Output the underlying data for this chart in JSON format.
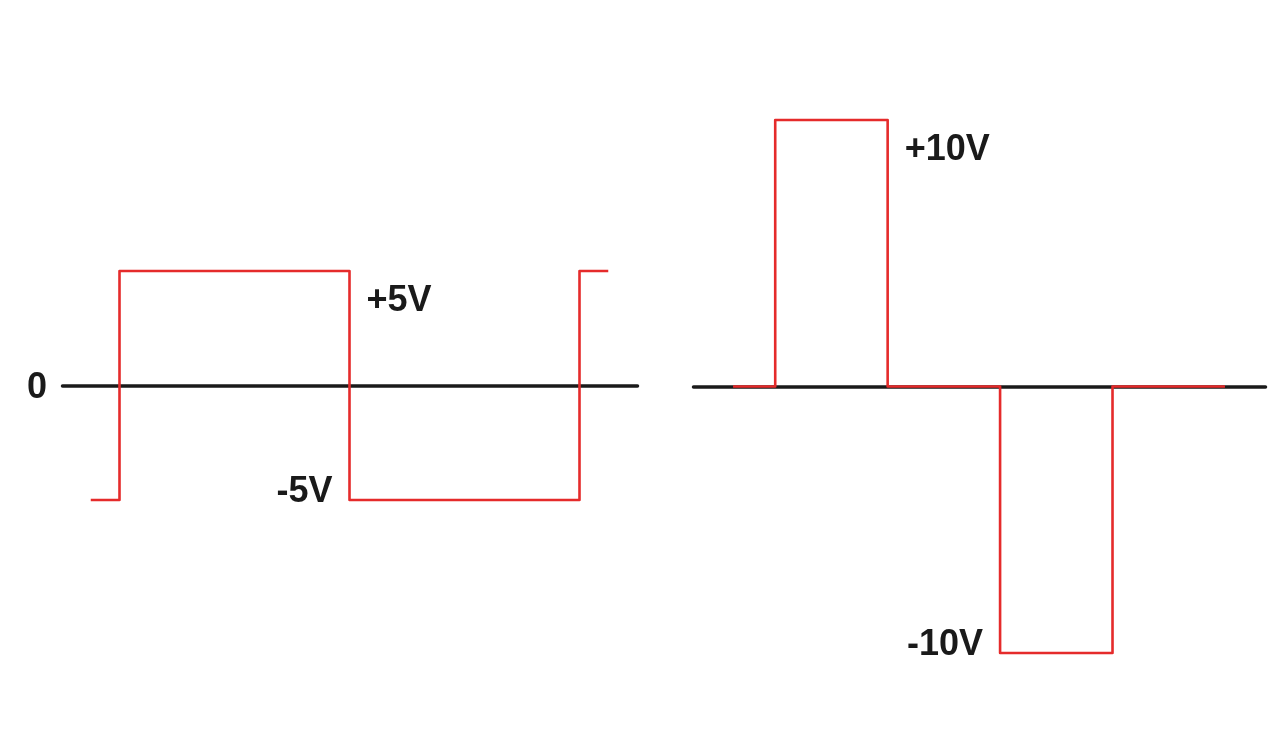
{
  "chart_data": [
    {
      "type": "step",
      "categories": [
        null,
        null,
        null,
        null,
        null,
        null,
        null,
        null,
        null,
        null,
        null,
        null,
        null,
        null,
        null,
        null,
        null,
        null,
        null
      ],
      "series": [
        {
          "color": "#e52b2b",
          "values": [
            -5,
            5,
            5,
            5,
            5,
            5,
            5,
            5,
            5,
            -5,
            -5,
            -5,
            -5,
            -5,
            -5,
            -5,
            -5,
            5,
            5
          ],
          "value_labels": [
            null,
            null,
            null,
            null,
            null,
            null,
            null,
            null,
            "+5V",
            "-5V",
            null,
            null,
            null,
            null,
            null,
            null,
            null,
            null,
            null
          ]
        }
      ],
      "annotations": [
        "0"
      ]
    },
    {
      "type": "step",
      "categories": [
        null,
        null,
        null,
        null,
        null,
        null,
        null,
        null,
        null,
        null,
        null,
        null,
        null,
        null,
        null,
        null,
        null,
        null,
        null,
        null,
        null,
        null,
        null,
        null,
        null,
        null,
        null,
        null,
        null,
        null,
        null,
        null,
        null,
        null,
        null,
        null
      ],
      "series": [
        {
          "color": "#e52b2b",
          "values": [
            0,
            0,
            0,
            10,
            10,
            10,
            10,
            10,
            10,
            10,
            10,
            0,
            0,
            0,
            0,
            0,
            0,
            0,
            0,
            -10,
            -10,
            -10,
            -10,
            -10,
            -10,
            -10,
            -10,
            0,
            0,
            0,
            0,
            0,
            0,
            0,
            0,
            0
          ],
          "value_labels": [
            null,
            null,
            null,
            null,
            null,
            null,
            null,
            null,
            null,
            null,
            "+10V",
            null,
            null,
            null,
            null,
            null,
            null,
            null,
            null,
            "-10V",
            null,
            null,
            null,
            null,
            null,
            null,
            null,
            null,
            null,
            null,
            null,
            null,
            null,
            null,
            null,
            null
          ]
        }
      ]
    }
  ]
}
